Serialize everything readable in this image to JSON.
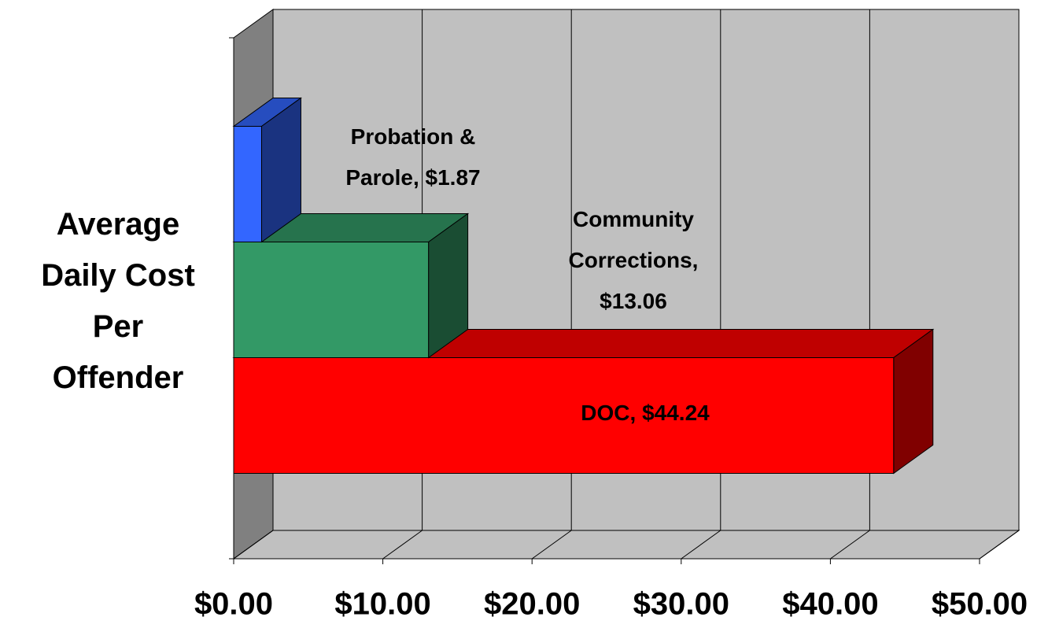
{
  "chart_data": {
    "type": "bar3d_horizontal",
    "ylabel": "Average Daily Cost Per Offender",
    "values": [
      44.24,
      13.06,
      1.87
    ],
    "value_labels": [
      "DOC, $44.24",
      "Community Corrections, $13.06",
      "Probation & Parole, $1.87"
    ],
    "colors": [
      "#ff0000",
      "#339966",
      "#3366ff"
    ],
    "xlim": [
      0,
      50
    ],
    "xticks": [
      {
        "value": 0,
        "label": "$0.00"
      },
      {
        "value": 10,
        "label": "$10.00"
      },
      {
        "value": 20,
        "label": "$20.00"
      },
      {
        "value": 30,
        "label": "$30.00"
      },
      {
        "value": 40,
        "label": "$40.00"
      },
      {
        "value": 50,
        "label": "$50.00"
      }
    ],
    "grid": true
  }
}
